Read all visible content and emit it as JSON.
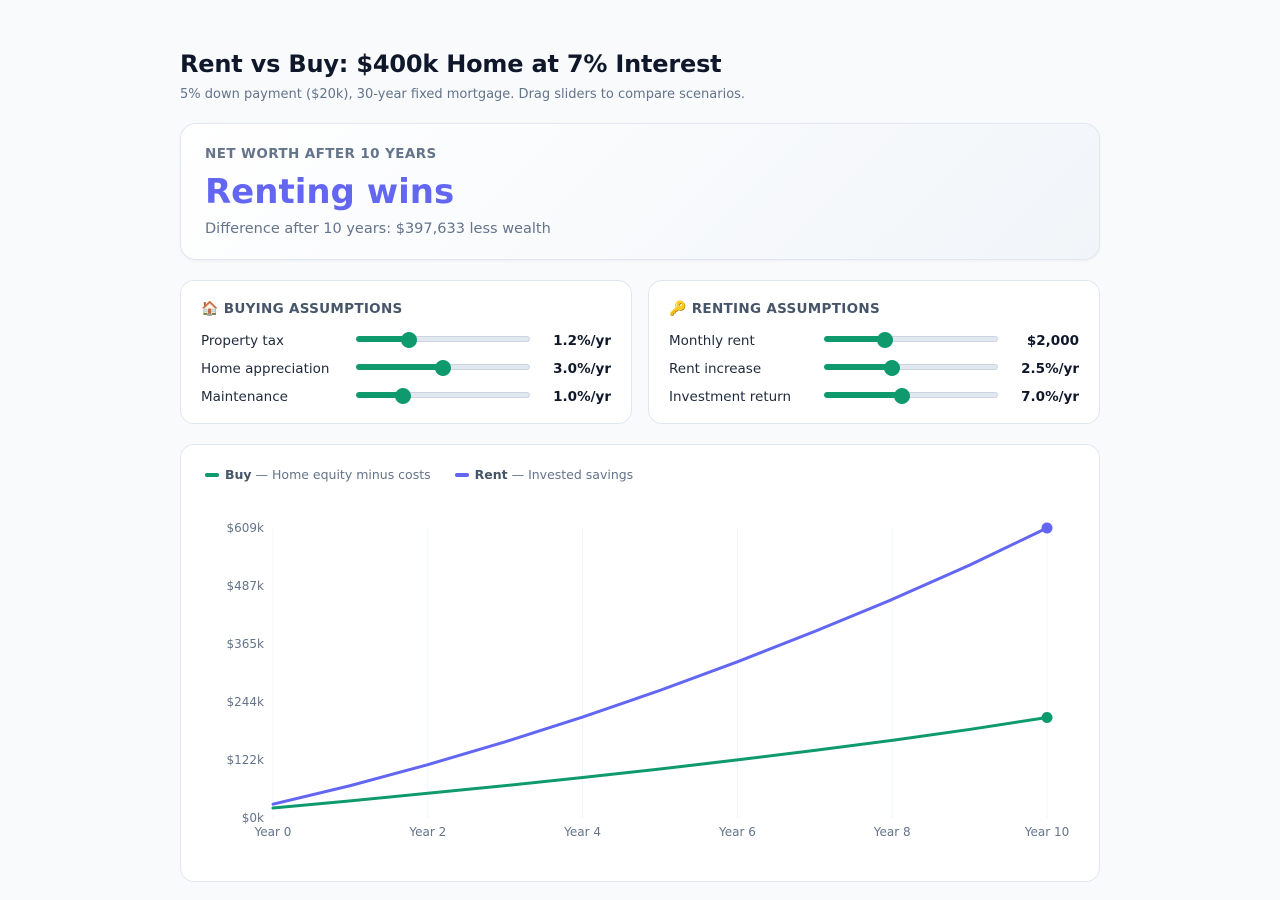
{
  "header": {
    "title": "Rent vs Buy: $400k Home at 7% Interest",
    "subtitle": "5% down payment ($20k), 30-year fixed mortgage. Drag sliders to compare scenarios."
  },
  "summary": {
    "label": "NET WORTH AFTER 10 YEARS",
    "verdict": "Renting wins",
    "difference": "Difference after 10 years: $397,633 less wealth"
  },
  "buying": {
    "icon": "house-icon",
    "icon_glyph": "🏠",
    "title": "BUYING ASSUMPTIONS",
    "rows": [
      {
        "label": "Property tax",
        "value": "1.2%/yr",
        "level": 0.3
      },
      {
        "label": "Home appreciation",
        "value": "3.0%/yr",
        "level": 0.5
      },
      {
        "label": "Maintenance",
        "value": "1.0%/yr",
        "level": 0.27
      }
    ]
  },
  "renting": {
    "icon": "key-icon",
    "icon_glyph": "🔑",
    "title": "RENTING ASSUMPTIONS",
    "rows": [
      {
        "label": "Monthly rent",
        "value": "$2,000",
        "level": 0.35
      },
      {
        "label": "Rent increase",
        "value": "2.5%/yr",
        "level": 0.39
      },
      {
        "label": "Investment return",
        "value": "7.0%/yr",
        "level": 0.45
      }
    ]
  },
  "colors": {
    "buy": "#0f9a6e",
    "rent": "#6366f1"
  },
  "legend": {
    "buy_name": "Buy",
    "buy_desc": " — Home equity minus costs",
    "rent_name": "Rent",
    "rent_desc": " — Invested savings"
  },
  "chart_data": {
    "type": "line",
    "x": [
      0,
      1,
      2,
      3,
      4,
      5,
      6,
      7,
      8,
      9,
      10
    ],
    "xticks": [
      0,
      2,
      4,
      6,
      8,
      10
    ],
    "xtick_labels": [
      "Year 0",
      "Year 2",
      "Year 4",
      "Year 6",
      "Year 8",
      "Year 10"
    ],
    "ylim": [
      0,
      609000
    ],
    "yticks": [
      0,
      122000,
      244000,
      365000,
      487000,
      609000
    ],
    "ytick_labels": [
      "$0k",
      "$122k",
      "$244k",
      "$365k",
      "$487k",
      "$609k"
    ],
    "grid": "vertical",
    "legend_position": "top-left",
    "series": [
      {
        "name": "Buy",
        "values": [
          21000,
          36000,
          52000,
          68000,
          85000,
          103000,
          122000,
          142000,
          163000,
          186000,
          211000
        ]
      },
      {
        "name": "Rent",
        "values": [
          29000,
          68000,
          112000,
          160000,
          212000,
          268000,
          328000,
          392000,
          459000,
          531000,
          609000
        ]
      }
    ]
  }
}
